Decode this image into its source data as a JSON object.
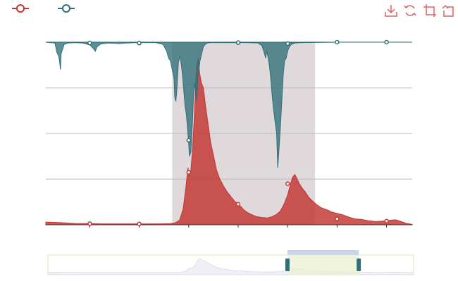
{
  "colors": {
    "series_a": "#c23531",
    "series_b": "#2f6f7a",
    "gridline": "#bbbbbb",
    "mark_area": "#d9d2d6",
    "toolbox": "#e06060",
    "slider_fill": "#e9f0cf",
    "slider_border": "#e0e6b8",
    "slider_handle": "#2f6f7a"
  },
  "toolbox": {
    "icons": [
      "download-icon",
      "refresh-icon",
      "zoom-select-icon",
      "zoom-back-icon"
    ]
  },
  "chart_data": {
    "type": "area",
    "ylim": [
      0,
      4
    ],
    "xlim": [
      0,
      1
    ],
    "grid": true,
    "legend": {
      "placement": "top-left"
    },
    "series": [
      {
        "color": "#c23531",
        "direction": "up",
        "points": [
          [
            0,
            0.06
          ],
          [
            0.05,
            0.045
          ],
          [
            0.08,
            0.03
          ],
          [
            0.12,
            0.025
          ],
          [
            0.16,
            0.02
          ],
          [
            0.2,
            0.02
          ],
          [
            0.25,
            0.02
          ],
          [
            0.3,
            0.02
          ],
          [
            0.34,
            0.025
          ],
          [
            0.352,
            0.04
          ],
          [
            0.365,
            0.1
          ],
          [
            0.375,
            0.35
          ],
          [
            0.382,
            0.8
          ],
          [
            0.388,
            1.25
          ],
          [
            0.392,
            1.05
          ],
          [
            0.396,
            1.2
          ],
          [
            0.4,
            1.6
          ],
          [
            0.405,
            2.3
          ],
          [
            0.408,
            2.9
          ],
          [
            0.412,
            3.5
          ],
          [
            0.416,
            3.65
          ],
          [
            0.42,
            3.3
          ],
          [
            0.425,
            3.1
          ],
          [
            0.43,
            3.0
          ],
          [
            0.436,
            2.6
          ],
          [
            0.443,
            2.2
          ],
          [
            0.45,
            1.8
          ],
          [
            0.458,
            1.5
          ],
          [
            0.466,
            1.2
          ],
          [
            0.475,
            1.0
          ],
          [
            0.485,
            0.85
          ],
          [
            0.495,
            0.72
          ],
          [
            0.505,
            0.62
          ],
          [
            0.515,
            0.52
          ],
          [
            0.525,
            0.45
          ],
          [
            0.535,
            0.38
          ],
          [
            0.54,
            0.33
          ],
          [
            0.548,
            0.28
          ],
          [
            0.56,
            0.23
          ],
          [
            0.575,
            0.18
          ],
          [
            0.59,
            0.16
          ],
          [
            0.605,
            0.15
          ],
          [
            0.615,
            0.17
          ],
          [
            0.628,
            0.22
          ],
          [
            0.64,
            0.3
          ],
          [
            0.65,
            0.45
          ],
          [
            0.66,
            0.65
          ],
          [
            0.668,
            0.9
          ],
          [
            0.674,
            1.05
          ],
          [
            0.68,
            1.1
          ],
          [
            0.686,
            1.0
          ],
          [
            0.692,
            0.9
          ],
          [
            0.7,
            0.8
          ],
          [
            0.708,
            0.72
          ],
          [
            0.718,
            0.6
          ],
          [
            0.728,
            0.52
          ],
          [
            0.738,
            0.45
          ],
          [
            0.75,
            0.38
          ],
          [
            0.76,
            0.35
          ],
          [
            0.77,
            0.32
          ],
          [
            0.78,
            0.28
          ],
          [
            0.79,
            0.26
          ],
          [
            0.8,
            0.24
          ],
          [
            0.81,
            0.22
          ],
          [
            0.82,
            0.19
          ],
          [
            0.83,
            0.16
          ],
          [
            0.845,
            0.13
          ],
          [
            0.86,
            0.12
          ],
          [
            0.88,
            0.09
          ],
          [
            0.9,
            0.07
          ],
          [
            0.92,
            0.08
          ],
          [
            0.94,
            0.1
          ],
          [
            0.955,
            0.11
          ],
          [
            0.97,
            0.07
          ],
          [
            0.985,
            0.03
          ],
          [
            1,
            0.01
          ]
        ],
        "markers": [
          [
            0.12,
            0.025
          ],
          [
            0.255,
            0.02
          ],
          [
            0.39,
            1.15
          ],
          [
            0.525,
            0.45
          ],
          [
            0.66,
            0.9
          ],
          [
            0.795,
            0.13
          ],
          [
            0.93,
            0.08
          ]
        ]
      },
      {
        "color": "#2f6f7a",
        "direction": "down",
        "points": [
          [
            0,
            0
          ],
          [
            0.025,
            0.02
          ],
          [
            0.03,
            0.22
          ],
          [
            0.035,
            0.3
          ],
          [
            0.038,
            0.45
          ],
          [
            0.04,
            0.6
          ],
          [
            0.042,
            0.25
          ],
          [
            0.05,
            0.05
          ],
          [
            0.06,
            0.02
          ],
          [
            0.08,
            0.01
          ],
          [
            0.1,
            0.02
          ],
          [
            0.12,
            0.06
          ],
          [
            0.13,
            0.14
          ],
          [
            0.135,
            0.2
          ],
          [
            0.14,
            0.1
          ],
          [
            0.15,
            0.04
          ],
          [
            0.17,
            0.02
          ],
          [
            0.2,
            0.03
          ],
          [
            0.22,
            0.02
          ],
          [
            0.25,
            0.01
          ],
          [
            0.3,
            0.01
          ],
          [
            0.32,
            0.05
          ],
          [
            0.33,
            0.2
          ],
          [
            0.335,
            0.35
          ],
          [
            0.34,
            0.4
          ],
          [
            0.345,
            0.6
          ],
          [
            0.35,
            0.8
          ],
          [
            0.352,
            1.2
          ],
          [
            0.355,
            1.3
          ],
          [
            0.358,
            1.0
          ],
          [
            0.362,
            0.45
          ],
          [
            0.366,
            0.3
          ],
          [
            0.37,
            0.5
          ],
          [
            0.375,
            0.9
          ],
          [
            0.38,
            1.4
          ],
          [
            0.383,
            1.55
          ],
          [
            0.386,
            1.8
          ],
          [
            0.39,
            2.2
          ],
          [
            0.392,
            2.5
          ],
          [
            0.396,
            2.4
          ],
          [
            0.4,
            1.8
          ],
          [
            0.403,
            1.2
          ],
          [
            0.406,
            0.9
          ],
          [
            0.409,
            1.1
          ],
          [
            0.412,
            1.3
          ],
          [
            0.415,
            0.8
          ],
          [
            0.418,
            0.6
          ],
          [
            0.421,
            0.4
          ],
          [
            0.424,
            0.3
          ],
          [
            0.427,
            0.2
          ],
          [
            0.43,
            0.1
          ],
          [
            0.435,
            0.05
          ],
          [
            0.44,
            0.02
          ],
          [
            0.45,
            0.01
          ],
          [
            0.5,
            0.01
          ],
          [
            0.55,
            0.01
          ],
          [
            0.58,
            0.02
          ],
          [
            0.59,
            0.08
          ],
          [
            0.595,
            0.2
          ],
          [
            0.6,
            0.35
          ],
          [
            0.603,
            0.2
          ],
          [
            0.606,
            0.3
          ],
          [
            0.61,
            0.5
          ],
          [
            0.614,
            0.8
          ],
          [
            0.618,
            1.2
          ],
          [
            0.622,
            1.5
          ],
          [
            0.626,
            1.75
          ],
          [
            0.63,
            2.0
          ],
          [
            0.633,
            2.75
          ],
          [
            0.636,
            2.4
          ],
          [
            0.64,
            1.9
          ],
          [
            0.644,
            1.3
          ],
          [
            0.648,
            0.7
          ],
          [
            0.652,
            0.4
          ],
          [
            0.656,
            0.35
          ],
          [
            0.66,
            0.2
          ],
          [
            0.665,
            0.1
          ],
          [
            0.67,
            0.05
          ],
          [
            0.68,
            0.02
          ],
          [
            0.7,
            0.01
          ],
          [
            0.8,
            0
          ],
          [
            1,
            0
          ]
        ],
        "markers": [
          [
            0.12,
            0.02
          ],
          [
            0.255,
            0.02
          ],
          [
            0.39,
            2.15
          ],
          [
            0.525,
            0.01
          ],
          [
            0.66,
            0.03
          ],
          [
            0.795,
            0.0
          ],
          [
            0.93,
            0.0
          ]
        ]
      }
    ],
    "mark_area": {
      "x": [
        0.345,
        0.735
      ]
    },
    "zoom_window": {
      "start": 0.655,
      "end": 0.85
    }
  }
}
